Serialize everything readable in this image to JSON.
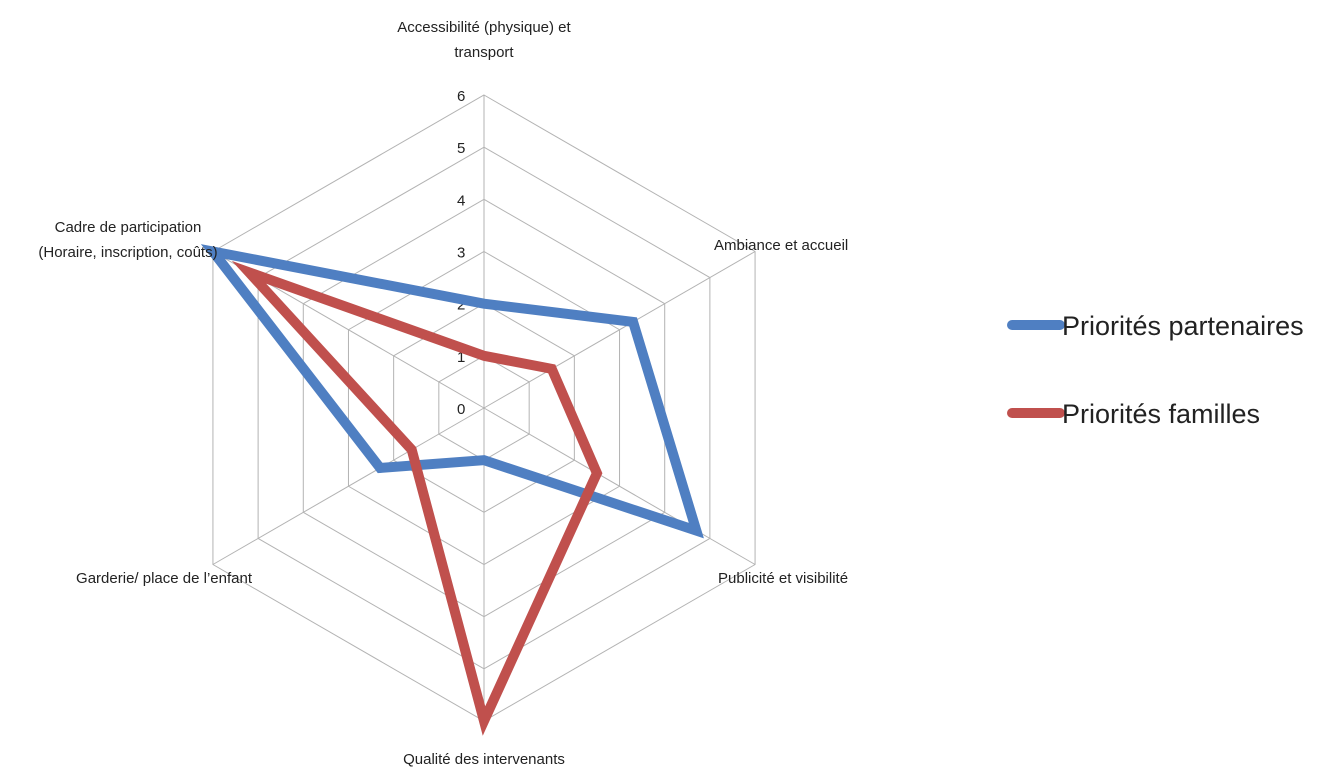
{
  "chart_data": {
    "type": "radar",
    "categories": [
      [
        "Accessibilité (physique) et",
        "transport"
      ],
      [
        "Ambiance et accueil"
      ],
      [
        "Publicité et visibilité"
      ],
      [
        "Qualité des intervenants"
      ],
      [
        "Garderie/ place de l’enfant"
      ],
      [
        "Cadre de participation",
        "(Horaire, inscription, coûts)"
      ]
    ],
    "series": [
      {
        "name": "Priorités partenaires",
        "color": "#4f7fc2",
        "values": [
          2,
          3.3,
          4.7,
          1,
          2.3,
          6
        ]
      },
      {
        "name": "Priorités familles",
        "color": "#c0504d",
        "values": [
          1,
          1.5,
          2.5,
          6,
          1.6,
          5.2
        ]
      }
    ],
    "rlim": [
      0,
      6
    ],
    "ticks": [
      "0",
      "1",
      "2",
      "3",
      "4",
      "5",
      "6"
    ],
    "grid": true,
    "legend": "right"
  }
}
